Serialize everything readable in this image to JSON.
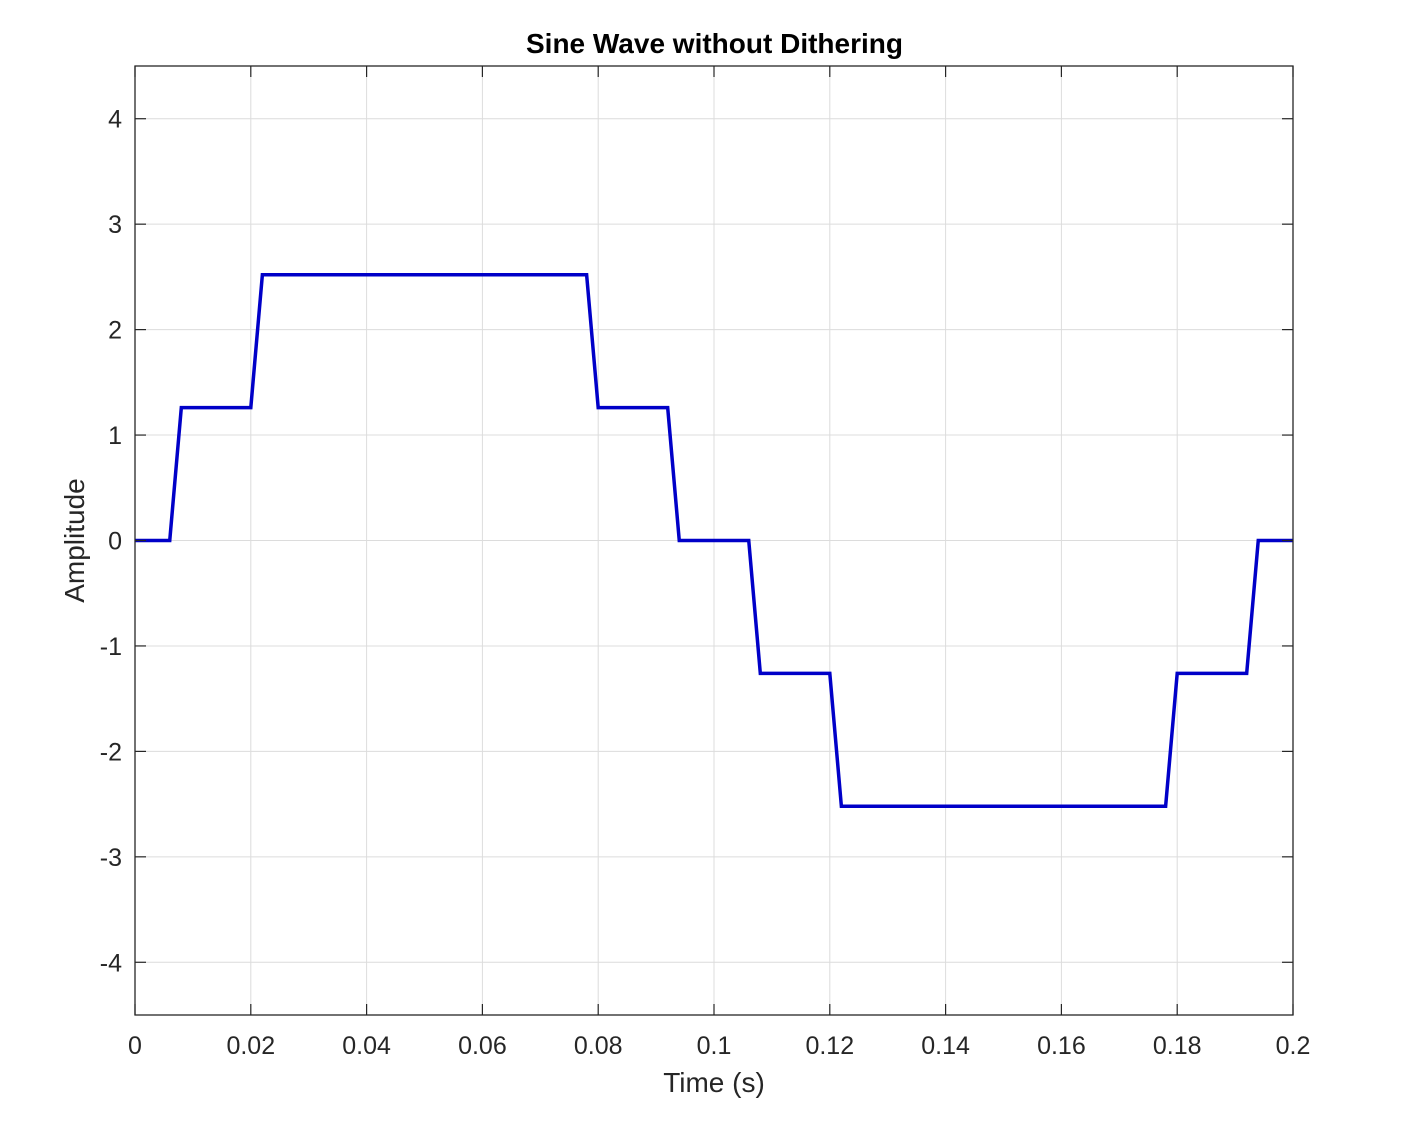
{
  "chart_data": {
    "type": "line",
    "title": "Sine Wave without Dithering",
    "xlabel": "Time (s)",
    "ylabel": "Amplitude",
    "xlim": [
      0,
      0.2
    ],
    "ylim": [
      -4.5,
      4.5
    ],
    "grid": true,
    "x_ticks": [
      0,
      0.02,
      0.04,
      0.06,
      0.08,
      0.1,
      0.12,
      0.14,
      0.16,
      0.18,
      0.2
    ],
    "x_tick_labels": [
      "0",
      "0.02",
      "0.04",
      "0.06",
      "0.08",
      "0.1",
      "0.12",
      "0.14",
      "0.16",
      "0.18",
      "0.2"
    ],
    "y_ticks": [
      4,
      3,
      2,
      1,
      0,
      -1,
      -2,
      -3,
      -4
    ],
    "y_tick_labels": [
      "4",
      "3",
      "2",
      "1",
      "0",
      "-1",
      "-2",
      "-3",
      "-4"
    ],
    "series": [
      {
        "color": "#0000c8",
        "x": [
          0,
          0.006,
          0.008,
          0.02,
          0.022,
          0.078,
          0.08,
          0.092,
          0.094,
          0.106,
          0.108,
          0.12,
          0.122,
          0.178,
          0.18,
          0.192,
          0.194,
          0.2
        ],
        "y": [
          0,
          0,
          1.26,
          1.26,
          2.52,
          2.52,
          1.26,
          1.26,
          0,
          0,
          -1.26,
          -1.26,
          -2.52,
          -2.52,
          -1.26,
          -1.26,
          0,
          0
        ]
      }
    ]
  }
}
